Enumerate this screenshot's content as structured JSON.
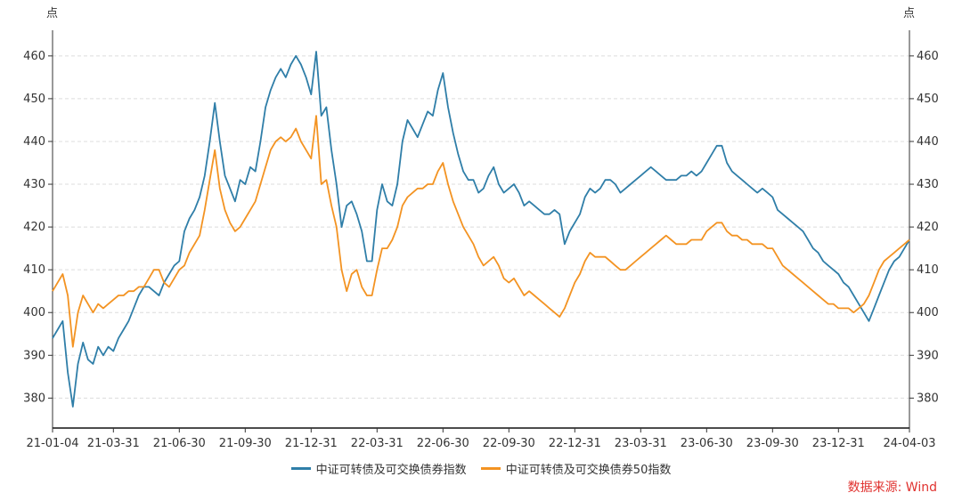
{
  "chart_data": {
    "type": "line",
    "unit_left": "点",
    "unit_right": "点",
    "ylim": [
      373,
      466
    ],
    "yticks": [
      380,
      390,
      400,
      410,
      420,
      430,
      440,
      450,
      460
    ],
    "x_labels": [
      "21-01-04",
      "21-03-31",
      "21-06-30",
      "21-09-30",
      "21-12-31",
      "22-03-31",
      "22-06-30",
      "22-09-30",
      "22-12-31",
      "23-03-31",
      "23-06-30",
      "23-09-30",
      "23-12-31",
      "24-04-03"
    ],
    "x_label_index": [
      0,
      12,
      25,
      38,
      51,
      64,
      77,
      90,
      103,
      116,
      129,
      142,
      155,
      169
    ],
    "grid": "horizontal-dashed",
    "legend_position": "bottom-center",
    "series": [
      {
        "name": "中证可转债及可交换债券指数",
        "color": "#2f7ea8",
        "values": [
          394,
          396,
          398,
          386,
          378,
          388,
          393,
          389,
          388,
          392,
          390,
          392,
          391,
          394,
          396,
          398,
          401,
          404,
          406,
          406,
          405,
          404,
          407,
          409,
          411,
          412,
          419,
          422,
          424,
          427,
          432,
          440,
          449,
          440,
          432,
          429,
          426,
          431,
          430,
          434,
          433,
          440,
          448,
          452,
          455,
          457,
          455,
          458,
          460,
          458,
          455,
          451,
          461,
          446,
          448,
          438,
          430,
          420,
          425,
          426,
          423,
          419,
          412,
          412,
          424,
          430,
          426,
          425,
          430,
          440,
          445,
          443,
          441,
          444,
          447,
          446,
          452,
          456,
          448,
          442,
          437,
          433,
          431,
          431,
          428,
          429,
          432,
          434,
          430,
          428,
          429,
          430,
          428,
          425,
          426,
          425,
          424,
          423,
          423,
          424,
          423,
          416,
          419,
          421,
          423,
          427,
          429,
          428,
          429,
          431,
          431,
          430,
          428,
          429,
          430,
          431,
          432,
          433,
          434,
          433,
          432,
          431,
          431,
          431,
          432,
          432,
          433,
          432,
          433,
          435,
          437,
          439,
          439,
          435,
          433,
          432,
          431,
          430,
          429,
          428,
          429,
          428,
          427,
          424,
          423,
          422,
          421,
          420,
          419,
          417,
          415,
          414,
          412,
          411,
          410,
          409,
          407,
          406,
          404,
          402,
          400,
          398,
          401,
          404,
          407,
          410,
          412,
          413,
          415,
          417
        ]
      },
      {
        "name": "中证可转债及可交换债券50指数",
        "color": "#f39322",
        "values": [
          405,
          407,
          409,
          404,
          392,
          400,
          404,
          402,
          400,
          402,
          401,
          402,
          403,
          404,
          404,
          405,
          405,
          406,
          406,
          408,
          410,
          410,
          407,
          406,
          408,
          410,
          411,
          414,
          416,
          418,
          424,
          431,
          438,
          429,
          424,
          421,
          419,
          420,
          422,
          424,
          426,
          430,
          434,
          438,
          440,
          441,
          440,
          441,
          443,
          440,
          438,
          436,
          446,
          430,
          431,
          425,
          420,
          410,
          405,
          409,
          410,
          406,
          404,
          404,
          410,
          415,
          415,
          417,
          420,
          425,
          427,
          428,
          429,
          429,
          430,
          430,
          433,
          435,
          430,
          426,
          423,
          420,
          418,
          416,
          413,
          411,
          412,
          413,
          411,
          408,
          407,
          408,
          406,
          404,
          405,
          404,
          403,
          402,
          401,
          400,
          399,
          401,
          404,
          407,
          409,
          412,
          414,
          413,
          413,
          413,
          412,
          411,
          410,
          410,
          411,
          412,
          413,
          414,
          415,
          416,
          417,
          418,
          417,
          416,
          416,
          416,
          417,
          417,
          417,
          419,
          420,
          421,
          421,
          419,
          418,
          418,
          417,
          417,
          416,
          416,
          416,
          415,
          415,
          413,
          411,
          410,
          409,
          408,
          407,
          406,
          405,
          404,
          403,
          402,
          402,
          401,
          401,
          401,
          400,
          401,
          402,
          404,
          407,
          410,
          412,
          413,
          414,
          415,
          416,
          417
        ]
      }
    ]
  },
  "source": "数据来源: Wind"
}
